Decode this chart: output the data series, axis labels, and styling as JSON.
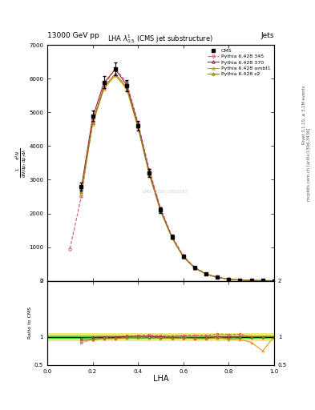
{
  "title_top": "13000 GeV pp",
  "title_right": "Jets",
  "plot_title": "LHA $\\lambda^{1}_{0.5}$ (CMS jet substructure)",
  "xlabel": "LHA",
  "ylabel_main": "$\\frac{1}{\\mathrm{d}N/\\mathrm{d}p_T}\\frac{\\mathrm{d}^2N}{\\mathrm{d}p_T\\mathrm{d}\\lambda}$",
  "ylabel_ratio": "Ratio to CMS",
  "watermark": "CMS_2020_I1920187",
  "right_label1": "Rivet 3.1.10, \\u2265 3.1M events",
  "right_label2": "mcplots.cern.ch [arXiv:1306.3436]",
  "x_centers": [
    0.05,
    0.1,
    0.15,
    0.2,
    0.25,
    0.3,
    0.35,
    0.4,
    0.45,
    0.5,
    0.55,
    0.6,
    0.65,
    0.7,
    0.75,
    0.8,
    0.85,
    0.9,
    0.95,
    1.0
  ],
  "cms_data": [
    0,
    0,
    2800,
    4900,
    5900,
    6300,
    5800,
    4600,
    3200,
    2100,
    1300,
    720,
    390,
    200,
    100,
    48,
    22,
    10,
    4,
    1
  ],
  "cms_errors": [
    0,
    0,
    120,
    160,
    180,
    190,
    170,
    140,
    110,
    80,
    60,
    40,
    25,
    15,
    10,
    6,
    4,
    3,
    2,
    1
  ],
  "pythia345_data": [
    0,
    950,
    2500,
    4700,
    5800,
    6300,
    5900,
    4700,
    3300,
    2150,
    1320,
    740,
    400,
    205,
    105,
    50,
    23,
    10,
    4,
    1
  ],
  "pythia370_data": [
    0,
    0,
    2750,
    4850,
    5880,
    6280,
    5820,
    4640,
    3220,
    2100,
    1290,
    715,
    385,
    198,
    100,
    48,
    22,
    10,
    4,
    1
  ],
  "pythia_ambt1_data": [
    0,
    0,
    2600,
    4650,
    5700,
    6100,
    5700,
    4550,
    3150,
    2060,
    1270,
    705,
    378,
    193,
    98,
    46,
    21,
    9,
    3,
    1
  ],
  "pythia_z2_data": [
    0,
    0,
    2650,
    4700,
    5750,
    6150,
    5750,
    4580,
    3170,
    2070,
    1275,
    708,
    380,
    195,
    99,
    47,
    22,
    10,
    4,
    1
  ],
  "color_cms": "#000000",
  "color_345": "#e05080",
  "color_370": "#a02040",
  "color_ambt1": "#e09000",
  "color_z2": "#808020",
  "ratio_green_lo": 0.97,
  "ratio_green_hi": 1.03,
  "ratio_yellow_lo": 0.93,
  "ratio_yellow_hi": 1.07,
  "ylim_main": [
    0,
    7000
  ],
  "ylim_ratio": [
    0.5,
    2.0
  ],
  "xlim": [
    0,
    1
  ],
  "yticks_main": [
    0,
    1000,
    2000,
    3000,
    4000,
    5000,
    6000,
    7000
  ],
  "ytick_labels_main": [
    "0",
    "1000",
    "2000",
    "3000",
    "4000",
    "5000",
    "6000",
    "7000"
  ],
  "yticks_ratio": [
    0.5,
    1.0,
    2.0
  ],
  "ytick_labels_ratio": [
    "0.5",
    "1",
    "2"
  ]
}
